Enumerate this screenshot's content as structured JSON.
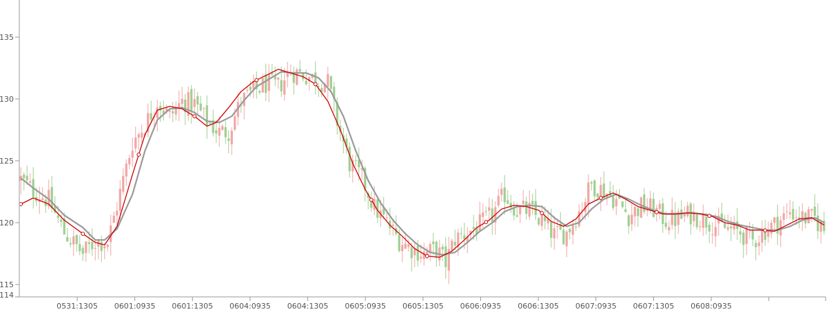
{
  "chart_data": {
    "type": "candlestick",
    "title": "",
    "xlabel": "",
    "ylabel": "",
    "ylim": [
      114,
      138
    ],
    "y_ticks": [
      114,
      115,
      120,
      125,
      130,
      135
    ],
    "x_tick_labels": [
      "0531:1305",
      "0601:0935",
      "0601:1305",
      "0604:0935",
      "0604:1305",
      "0605:0935",
      "0605:1305",
      "0606:0935",
      "0606:1305",
      "0607:0935",
      "0607:1305",
      "0608:0935"
    ],
    "grid": false,
    "colors": {
      "up": "#f2a5a5",
      "down": "#9fcf8f",
      "ma_fast": "#cc0000",
      "ma_slow": "#999999"
    },
    "close_path": [
      [
        0,
        123.5
      ],
      [
        4,
        122.6
      ],
      [
        9,
        121.8
      ],
      [
        14,
        119.2
      ],
      [
        20,
        117.5
      ],
      [
        24,
        118.5
      ],
      [
        28,
        118.4
      ],
      [
        31,
        121.4
      ],
      [
        36,
        126.5
      ],
      [
        40,
        127.9
      ],
      [
        44,
        129.8
      ],
      [
        48,
        128.6
      ],
      [
        52,
        129.8
      ],
      [
        56,
        129.6
      ],
      [
        60,
        128.2
      ],
      [
        64,
        127.3
      ],
      [
        67,
        127.4
      ],
      [
        71,
        129.8
      ],
      [
        75,
        130.6
      ],
      [
        79,
        131.2
      ],
      [
        83,
        131.0
      ],
      [
        87,
        132.2
      ],
      [
        91,
        132.0
      ],
      [
        95,
        131.6
      ],
      [
        99,
        131.3
      ],
      [
        102,
        128.2
      ],
      [
        106,
        124.8
      ],
      [
        110,
        123.6
      ],
      [
        114,
        121.2
      ],
      [
        118,
        120.0
      ],
      [
        122,
        118.6
      ],
      [
        126,
        117.9
      ],
      [
        130,
        117.5
      ],
      [
        134,
        117.8
      ],
      [
        137,
        116.8
      ],
      [
        140,
        118.7
      ],
      [
        144,
        119.2
      ],
      [
        148,
        119.8
      ],
      [
        152,
        120.6
      ],
      [
        156,
        122.3
      ],
      [
        160,
        121.0
      ],
      [
        164,
        121.0
      ],
      [
        168,
        120.1
      ],
      [
        172,
        119.0
      ],
      [
        176,
        119.2
      ],
      [
        180,
        120.9
      ],
      [
        184,
        123.1
      ],
      [
        188,
        122.6
      ],
      [
        192,
        121.8
      ],
      [
        196,
        120.6
      ],
      [
        200,
        121.3
      ],
      [
        204,
        121.1
      ],
      [
        208,
        120.2
      ],
      [
        212,
        120.3
      ],
      [
        216,
        120.7
      ],
      [
        220,
        120.3
      ],
      [
        224,
        119.8
      ],
      [
        228,
        119.5
      ],
      [
        232,
        119.2
      ],
      [
        236,
        118.5
      ],
      [
        240,
        119.4
      ],
      [
        244,
        120.0
      ],
      [
        248,
        120.9
      ],
      [
        252,
        120.4
      ],
      [
        256,
        120.3
      ],
      [
        259,
        119.4
      ]
    ],
    "ma_fast": [
      [
        0,
        121.5
      ],
      [
        4,
        122.0
      ],
      [
        9,
        121.5
      ],
      [
        14,
        120.2
      ],
      [
        20,
        119.1
      ],
      [
        24,
        118.4
      ],
      [
        27,
        118.2
      ],
      [
        31,
        119.7
      ],
      [
        36,
        123.9
      ],
      [
        40,
        127.1
      ],
      [
        44,
        129.1
      ],
      [
        48,
        129.4
      ],
      [
        52,
        129.2
      ],
      [
        56,
        128.6
      ],
      [
        60,
        127.8
      ],
      [
        63,
        128.1
      ],
      [
        67,
        129.3
      ],
      [
        71,
        130.6
      ],
      [
        75,
        131.4
      ],
      [
        79,
        131.9
      ],
      [
        83,
        132.4
      ],
      [
        87,
        132.1
      ],
      [
        91,
        131.8
      ],
      [
        95,
        131.2
      ],
      [
        99,
        129.8
      ],
      [
        103,
        127.5
      ],
      [
        107,
        124.8
      ],
      [
        111,
        122.7
      ],
      [
        115,
        121.0
      ],
      [
        119,
        119.8
      ],
      [
        123,
        118.9
      ],
      [
        127,
        117.9
      ],
      [
        131,
        117.3
      ],
      [
        135,
        117.2
      ],
      [
        139,
        117.7
      ],
      [
        143,
        118.6
      ],
      [
        147,
        119.6
      ],
      [
        151,
        120.2
      ],
      [
        155,
        121.1
      ],
      [
        159,
        121.4
      ],
      [
        163,
        121.3
      ],
      [
        167,
        121.0
      ],
      [
        171,
        120.1
      ],
      [
        175,
        119.7
      ],
      [
        179,
        120.3
      ],
      [
        183,
        121.5
      ],
      [
        187,
        122.0
      ],
      [
        191,
        122.4
      ],
      [
        195,
        121.9
      ],
      [
        199,
        121.3
      ],
      [
        203,
        121.0
      ],
      [
        207,
        120.7
      ],
      [
        211,
        120.7
      ],
      [
        215,
        120.8
      ],
      [
        219,
        120.7
      ],
      [
        223,
        120.5
      ],
      [
        227,
        120.0
      ],
      [
        231,
        119.8
      ],
      [
        235,
        119.4
      ],
      [
        239,
        119.4
      ],
      [
        243,
        119.3
      ],
      [
        247,
        119.8
      ],
      [
        251,
        120.3
      ],
      [
        255,
        120.4
      ],
      [
        259,
        119.8
      ]
    ],
    "ma_slow": [
      [
        0,
        123.6
      ],
      [
        4,
        122.8
      ],
      [
        9,
        121.9
      ],
      [
        14,
        120.6
      ],
      [
        20,
        119.6
      ],
      [
        24,
        118.6
      ],
      [
        27,
        118.6
      ],
      [
        31,
        119.5
      ],
      [
        36,
        122.3
      ],
      [
        40,
        125.8
      ],
      [
        44,
        128.3
      ],
      [
        48,
        129.2
      ],
      [
        52,
        129.3
      ],
      [
        56,
        128.9
      ],
      [
        60,
        128.2
      ],
      [
        64,
        128.1
      ],
      [
        68,
        128.6
      ],
      [
        72,
        129.9
      ],
      [
        76,
        131.0
      ],
      [
        80,
        131.6
      ],
      [
        84,
        132.2
      ],
      [
        88,
        132.1
      ],
      [
        92,
        132.1
      ],
      [
        96,
        131.7
      ],
      [
        100,
        130.6
      ],
      [
        104,
        128.6
      ],
      [
        108,
        125.8
      ],
      [
        112,
        123.4
      ],
      [
        116,
        121.6
      ],
      [
        120,
        120.2
      ],
      [
        124,
        119.1
      ],
      [
        128,
        118.2
      ],
      [
        132,
        117.6
      ],
      [
        136,
        117.4
      ],
      [
        140,
        117.6
      ],
      [
        144,
        118.4
      ],
      [
        148,
        119.3
      ],
      [
        152,
        120.0
      ],
      [
        156,
        120.9
      ],
      [
        160,
        121.3
      ],
      [
        164,
        121.4
      ],
      [
        168,
        121.3
      ],
      [
        172,
        120.4
      ],
      [
        176,
        119.7
      ],
      [
        180,
        120.0
      ],
      [
        184,
        121.1
      ],
      [
        188,
        121.9
      ],
      [
        192,
        122.3
      ],
      [
        196,
        121.9
      ],
      [
        200,
        121.4
      ],
      [
        204,
        121.0
      ],
      [
        208,
        120.7
      ],
      [
        212,
        120.7
      ],
      [
        216,
        120.8
      ],
      [
        220,
        120.7
      ],
      [
        224,
        120.5
      ],
      [
        228,
        120.1
      ],
      [
        232,
        119.8
      ],
      [
        236,
        119.6
      ],
      [
        240,
        119.4
      ],
      [
        244,
        119.4
      ],
      [
        248,
        119.7
      ],
      [
        252,
        120.2
      ],
      [
        256,
        120.4
      ],
      [
        259,
        120.0
      ]
    ],
    "ma_markers": [
      0,
      20,
      38,
      56,
      76,
      95,
      113,
      131,
      150,
      168,
      187,
      205,
      222,
      240
    ]
  }
}
